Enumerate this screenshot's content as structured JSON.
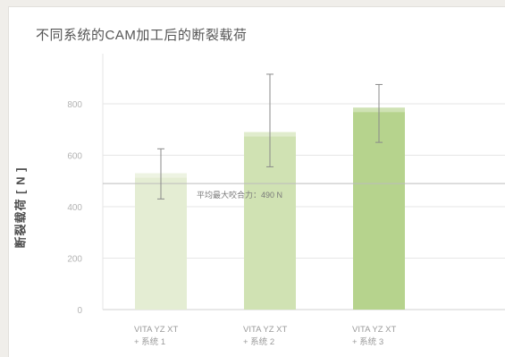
{
  "chart_data": {
    "type": "bar",
    "title": "不同系统的CAM加工后的断裂载荷",
    "ylabel": "断裂载荷 [ N ]",
    "xlabel": "",
    "ylim": [
      0,
      900
    ],
    "yticks": [
      0,
      200,
      400,
      600,
      800
    ],
    "categories": [
      [
        "VITA YZ XT",
        "+ 系统 1"
      ],
      [
        "VITA YZ XT",
        "+ 系统 2"
      ],
      [
        "VITA YZ XT",
        "+ 系统 3"
      ]
    ],
    "values": [
      530,
      690,
      785
    ],
    "error_low": [
      430,
      555,
      650
    ],
    "error_high": [
      625,
      915,
      875
    ],
    "reference_line": {
      "value": 490,
      "label": "平均最大咬合力：490 N"
    },
    "colors": [
      "#e4edd3",
      "#d0e2b3",
      "#b6d38d"
    ],
    "grid": true
  }
}
